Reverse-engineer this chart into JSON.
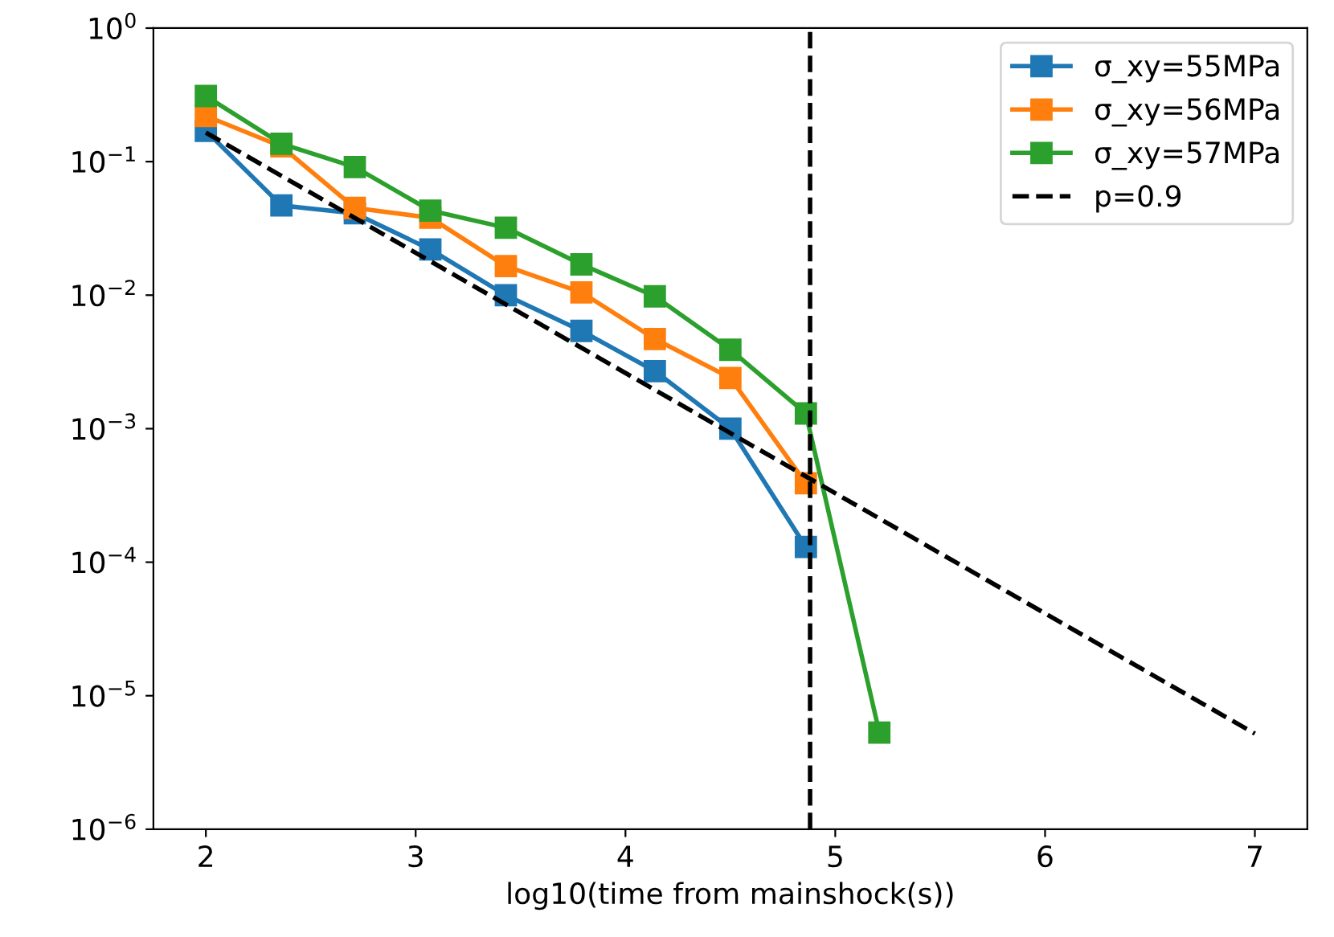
{
  "chart_data": {
    "type": "line",
    "xlabel": "log10(time from mainshock(s))",
    "log": "y",
    "xlim": [
      1.75,
      7.25
    ],
    "ylim": [
      1e-06,
      1
    ],
    "xticks": [
      2,
      3,
      4,
      5,
      6,
      7
    ],
    "yticks": [
      {
        "value": 1e-06,
        "label": "10$^{−6}$"
      },
      {
        "value": 1e-05,
        "label": "10$^{−5}$"
      },
      {
        "value": 0.0001,
        "label": "10$^{−4}$"
      },
      {
        "value": 0.001,
        "label": "10$^{−3}$"
      },
      {
        "value": 0.01,
        "label": "10$^{−2}$"
      },
      {
        "value": 0.1,
        "label": "10$^{−1}$"
      },
      {
        "value": 1,
        "label": "10$^{0}$"
      }
    ],
    "marker": "square",
    "legend": "top right",
    "grid": false,
    "series": [
      {
        "name": "σ_xy=55MPa",
        "color": "#1f77b4",
        "x": [
          2.0,
          2.36,
          2.71,
          3.07,
          3.43,
          3.79,
          4.14,
          4.5,
          4.86
        ],
        "values": [
          0.17,
          0.047,
          0.041,
          0.022,
          0.01,
          0.0054,
          0.0027,
          0.001,
          0.00013
        ]
      },
      {
        "name": "σ_xy=56MPa",
        "color": "#ff7f0e",
        "x": [
          2.0,
          2.36,
          2.71,
          3.07,
          3.43,
          3.79,
          4.14,
          4.5,
          4.86
        ],
        "values": [
          0.22,
          0.13,
          0.045,
          0.038,
          0.0165,
          0.0105,
          0.0047,
          0.0024,
          0.00039
        ]
      },
      {
        "name": "σ_xy=57MPa",
        "color": "#2ca02c",
        "x": [
          2.0,
          2.36,
          2.71,
          3.07,
          3.43,
          3.79,
          4.14,
          4.5,
          4.86,
          5.21
        ],
        "values": [
          0.31,
          0.136,
          0.091,
          0.043,
          0.032,
          0.017,
          0.0098,
          0.0039,
          0.0013,
          5.3e-06
        ]
      },
      {
        "name": "p=0.9",
        "color": "#000000",
        "marker": "none",
        "line_style": "dashed",
        "x": [
          2,
          7
        ],
        "values": [
          0.165,
          5.2e-06
        ]
      }
    ],
    "ref_lines": [
      {
        "axis": "x",
        "value": 4.88,
        "color": "#000000",
        "line_style": "dashed"
      }
    ]
  }
}
